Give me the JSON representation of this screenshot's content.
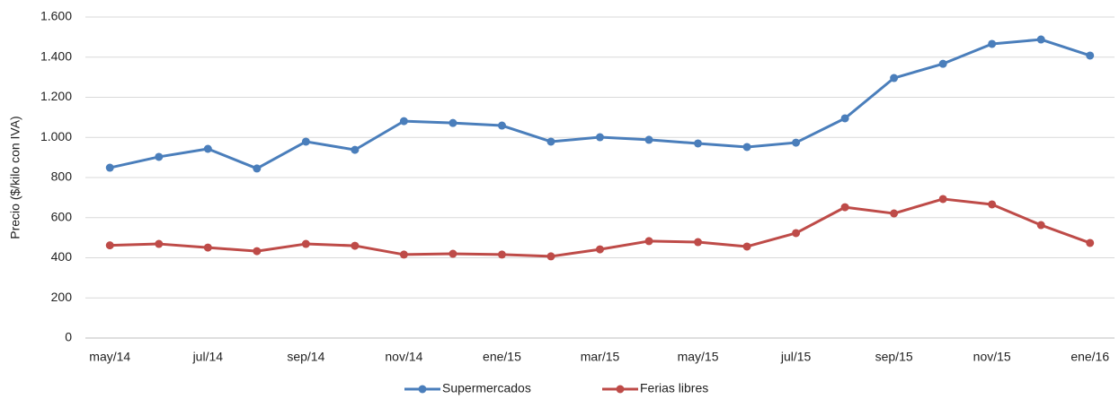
{
  "chart_data": {
    "type": "line",
    "y_label": "Precio ($/kilo con IVA)",
    "categories": [
      "may/14",
      null,
      "jul/14",
      null,
      "sep/14",
      null,
      "nov/14",
      null,
      "ene/15",
      null,
      "mar/15",
      null,
      "may/15",
      null,
      "jul/15",
      null,
      "sep/15",
      null,
      "nov/15",
      null,
      "ene/16"
    ],
    "series": [
      {
        "name": "Supermercados",
        "color": "#4a7ebb",
        "values": [
          849,
          903,
          943,
          845,
          979,
          938,
          1081,
          1072,
          1059,
          979,
          1001,
          988,
          970,
          952,
          974,
          1095,
          1296,
          1367,
          1466,
          1488,
          1408
        ]
      },
      {
        "name": "Ferias libres",
        "color": "#be4b48",
        "values": [
          462,
          469,
          451,
          433,
          469,
          460,
          416,
          420,
          416,
          407,
          442,
          483,
          478,
          456,
          523,
          652,
          621,
          693,
          666,
          563,
          474
        ]
      }
    ],
    "ylim": [
      0,
      1600
    ],
    "yticks": [
      0,
      200,
      400,
      600,
      800,
      {
        "value": 1000,
        "label": "1.000"
      },
      {
        "value": 1200,
        "label": "1.200"
      },
      {
        "value": 1400,
        "label": "1.400"
      },
      {
        "value": 1600,
        "label": "1.600"
      }
    ],
    "grid": true,
    "legend": "bottom"
  }
}
